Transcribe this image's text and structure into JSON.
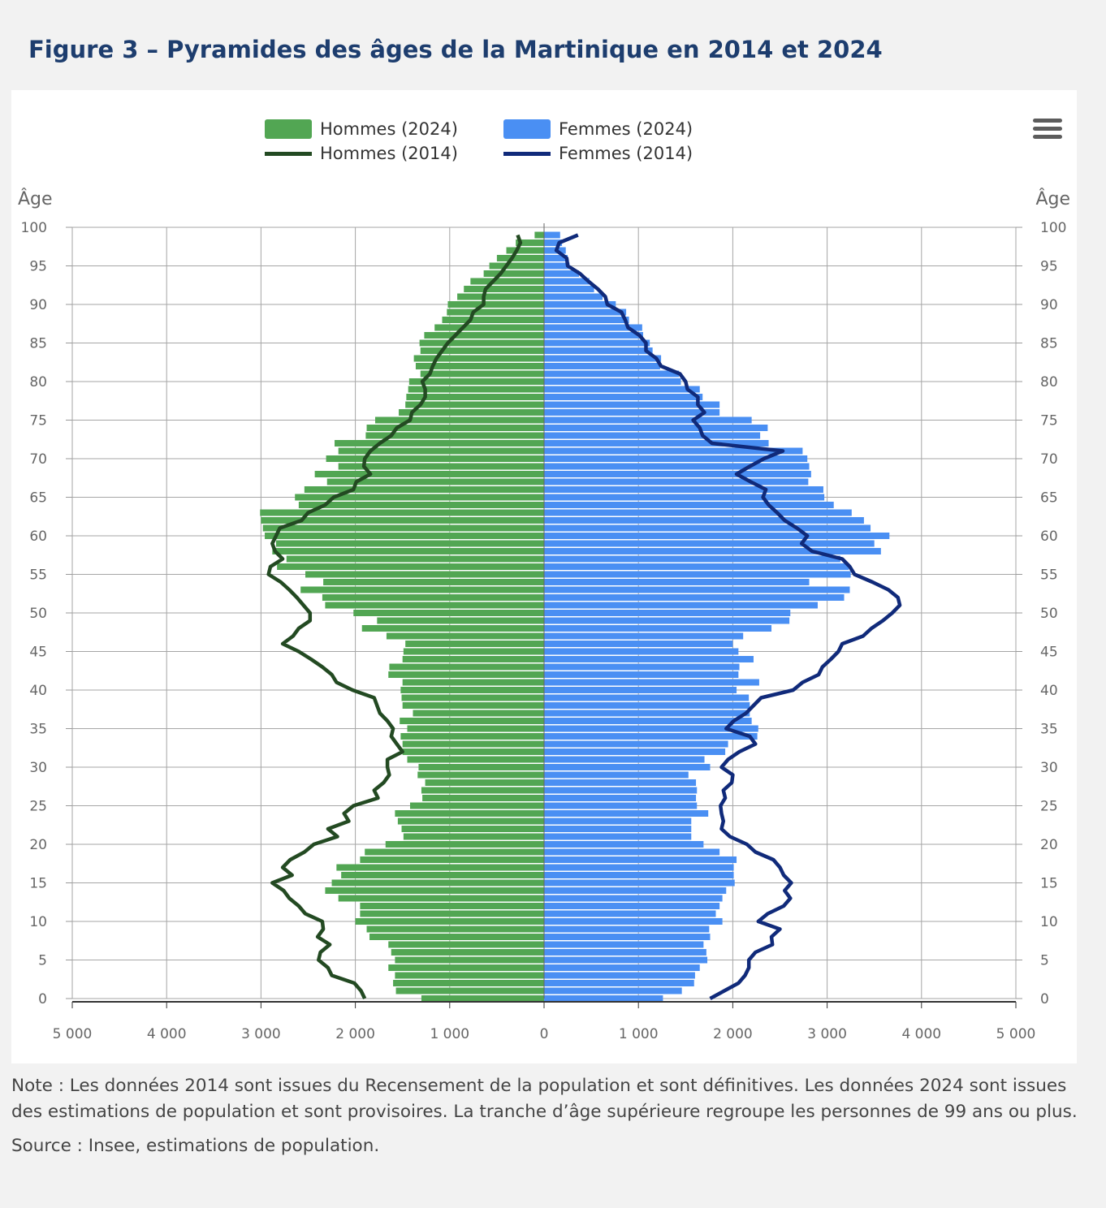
{
  "title": "Figure 3 – Pyramides des âges de la Martinique en 2014 et 2024",
  "menu_icon": "hamburger-menu-icon",
  "colors": {
    "hommes_2024": "#52a653",
    "femmes_2024": "#4a8ff3",
    "hommes_2014": "#234a22",
    "femmes_2014": "#102a7a",
    "grid": "#a6a6a6",
    "axis_text": "#666666"
  },
  "chart_data": {
    "type": "bar",
    "orientation": "horizontal",
    "title": "",
    "ylabel_left": "Âge",
    "ylabel_right": "Âge",
    "xlabel": "",
    "xlim": [
      -5000,
      5000
    ],
    "ylim": [
      0,
      100
    ],
    "x_ticks": [
      -5000,
      -4000,
      -3000,
      -2000,
      -1000,
      0,
      1000,
      2000,
      3000,
      4000,
      5000
    ],
    "x_tick_labels": [
      "5 000",
      "4 000",
      "3 000",
      "2 000",
      "1 000",
      "0",
      "1 000",
      "2 000",
      "3 000",
      "4 000",
      "5 000"
    ],
    "y_ticks": [
      0,
      5,
      10,
      15,
      20,
      25,
      30,
      35,
      40,
      45,
      50,
      55,
      60,
      65,
      70,
      75,
      80,
      85,
      90,
      95,
      100
    ],
    "y_tick_labels": [
      "0",
      "5",
      "10",
      "15",
      "20",
      "25",
      "30",
      "35",
      "40",
      "45",
      "50",
      "55",
      "60",
      "65",
      "70",
      "75",
      "80",
      "85",
      "90",
      "95",
      "100"
    ],
    "grid": true,
    "legend_position": "top-center",
    "ages": [
      0,
      1,
      2,
      3,
      4,
      5,
      6,
      7,
      8,
      9,
      10,
      11,
      12,
      13,
      14,
      15,
      16,
      17,
      18,
      19,
      20,
      21,
      22,
      23,
      24,
      25,
      26,
      27,
      28,
      29,
      30,
      31,
      32,
      33,
      34,
      35,
      36,
      37,
      38,
      39,
      40,
      41,
      42,
      43,
      44,
      45,
      46,
      47,
      48,
      49,
      50,
      51,
      52,
      53,
      54,
      55,
      56,
      57,
      58,
      59,
      60,
      61,
      62,
      63,
      64,
      65,
      66,
      67,
      68,
      69,
      70,
      71,
      72,
      73,
      74,
      75,
      76,
      77,
      78,
      79,
      80,
      81,
      82,
      83,
      84,
      85,
      86,
      87,
      88,
      89,
      90,
      91,
      92,
      93,
      94,
      95,
      96,
      97,
      98,
      99
    ],
    "series": [
      {
        "name": "Hommes (2024)",
        "type": "bar",
        "values": [
          1300,
          1570,
          1600,
          1580,
          1650,
          1580,
          1620,
          1650,
          1850,
          1880,
          2000,
          1950,
          1950,
          2180,
          2320,
          2250,
          2150,
          2200,
          1950,
          1900,
          1680,
          1490,
          1510,
          1550,
          1580,
          1420,
          1290,
          1300,
          1260,
          1340,
          1330,
          1450,
          1500,
          1500,
          1520,
          1450,
          1530,
          1390,
          1500,
          1510,
          1520,
          1500,
          1650,
          1640,
          1500,
          1490,
          1470,
          1670,
          1930,
          1770,
          2020,
          2320,
          2350,
          2580,
          2340,
          2530,
          2830,
          2730,
          2880,
          2840,
          2960,
          2980,
          3000,
          3010,
          2600,
          2640,
          2540,
          2300,
          2430,
          2180,
          2310,
          2180,
          2220,
          1890,
          1880,
          1790,
          1540,
          1470,
          1460,
          1440,
          1430,
          1310,
          1360,
          1380,
          1310,
          1320,
          1270,
          1160,
          1080,
          1030,
          1020,
          920,
          850,
          780,
          640,
          580,
          500,
          400,
          300,
          100
        ]
      },
      {
        "name": "Femmes (2024)",
        "type": "bar",
        "values": [
          1260,
          1460,
          1590,
          1600,
          1650,
          1730,
          1720,
          1690,
          1760,
          1750,
          1890,
          1820,
          1860,
          1890,
          1930,
          2020,
          2010,
          2010,
          2040,
          1860,
          1690,
          1560,
          1560,
          1560,
          1740,
          1620,
          1610,
          1620,
          1610,
          1530,
          1760,
          1700,
          1920,
          1950,
          2260,
          2270,
          2200,
          2180,
          2180,
          2170,
          2040,
          2280,
          2060,
          2070,
          2220,
          2060,
          2000,
          2110,
          2410,
          2600,
          2610,
          2900,
          3180,
          3240,
          2810,
          3250,
          3230,
          3140,
          3570,
          3500,
          3660,
          3460,
          3390,
          3260,
          3070,
          2970,
          2960,
          2800,
          2830,
          2810,
          2790,
          2740,
          2380,
          2290,
          2370,
          2200,
          1860,
          1860,
          1680,
          1650,
          1450,
          1430,
          1230,
          1240,
          1150,
          1120,
          1050,
          1040,
          900,
          870,
          760,
          620,
          530,
          480,
          370,
          270,
          250,
          230,
          190,
          170
        ]
      },
      {
        "name": "Hommes (2014)",
        "type": "line",
        "values": [
          1900,
          1940,
          2010,
          2250,
          2290,
          2390,
          2370,
          2270,
          2400,
          2340,
          2350,
          2530,
          2600,
          2700,
          2760,
          2880,
          2670,
          2770,
          2690,
          2540,
          2440,
          2190,
          2290,
          2070,
          2120,
          2020,
          1760,
          1800,
          1700,
          1640,
          1660,
          1660,
          1500,
          1560,
          1620,
          1600,
          1660,
          1740,
          1770,
          1800,
          2030,
          2200,
          2250,
          2350,
          2470,
          2600,
          2770,
          2660,
          2600,
          2480,
          2480,
          2550,
          2620,
          2700,
          2790,
          2920,
          2900,
          2770,
          2850,
          2880,
          2840,
          2800,
          2570,
          2500,
          2320,
          2230,
          2020,
          1990,
          1840,
          1910,
          1900,
          1840,
          1740,
          1620,
          1560,
          1420,
          1400,
          1310,
          1260,
          1260,
          1290,
          1210,
          1180,
          1140,
          1080,
          1020,
          940,
          860,
          780,
          750,
          640,
          640,
          620,
          540,
          460,
          400,
          340,
          290,
          250,
          280
        ]
      },
      {
        "name": "Femmes (2014)",
        "type": "line",
        "values": [
          1760,
          1910,
          2060,
          2130,
          2170,
          2170,
          2240,
          2420,
          2410,
          2500,
          2270,
          2370,
          2540,
          2610,
          2550,
          2620,
          2540,
          2500,
          2430,
          2240,
          2150,
          1970,
          1880,
          1900,
          1880,
          1870,
          1920,
          1900,
          1990,
          2000,
          1880,
          1950,
          2070,
          2240,
          2180,
          1930,
          2010,
          2140,
          2220,
          2300,
          2640,
          2740,
          2910,
          2950,
          3040,
          3120,
          3160,
          3380,
          3470,
          3590,
          3690,
          3770,
          3750,
          3650,
          3480,
          3290,
          3240,
          3160,
          2840,
          2730,
          2790,
          2680,
          2550,
          2470,
          2380,
          2320,
          2350,
          2190,
          2040,
          2180,
          2330,
          2530,
          1780,
          1680,
          1650,
          1580,
          1700,
          1630,
          1630,
          1520,
          1500,
          1440,
          1240,
          1190,
          1080,
          1080,
          1010,
          890,
          860,
          820,
          670,
          650,
          570,
          470,
          380,
          250,
          240,
          130,
          160,
          360
        ]
      }
    ]
  },
  "notes": {
    "note": "Note : Les données 2014 sont issues du Recensement de la population et sont définitives. Les données 2024 sont issues des estimations de population et sont provisoires. La tranche d’âge supérieure regroupe les personnes de 99 ans ou plus.",
    "source": "Source : Insee, estimations de population."
  }
}
